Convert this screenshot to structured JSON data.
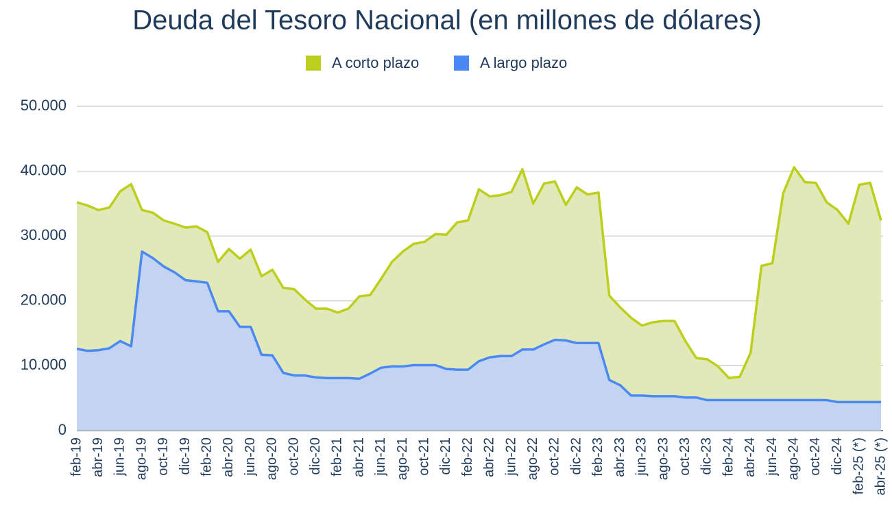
{
  "chart_data": {
    "type": "stacked_area",
    "title": "Deuda del Tesoro Nacional (en millones de dólares)",
    "categories": [
      "feb-19",
      null,
      "abr-19",
      null,
      "jun-19",
      null,
      "ago-19",
      null,
      "oct-19",
      null,
      "dic-19",
      null,
      "feb-20",
      null,
      "abr-20",
      null,
      "jun-20",
      null,
      "ago-20",
      null,
      "oct-20",
      null,
      "dic-20",
      null,
      "feb-21",
      null,
      "abr-21",
      null,
      "jun-21",
      null,
      "ago-21",
      null,
      "oct-21",
      null,
      "dic-21",
      null,
      "feb-22",
      null,
      "abr-22",
      null,
      "jun-22",
      null,
      "ago-22",
      null,
      "oct-22",
      null,
      "dic-22",
      null,
      "feb-23",
      null,
      "abr-23",
      null,
      "jun-23",
      null,
      "ago-23",
      null,
      "oct-23",
      null,
      "dic-23",
      null,
      "feb-24",
      null,
      "abr-24",
      null,
      "jun-24",
      null,
      "ago-24",
      null,
      "oct-24",
      null,
      "dic-24",
      null,
      "feb-25 (*)",
      null,
      "abr-25 (*)"
    ],
    "series": [
      {
        "name": "A corto plazo",
        "color": "#bccf1c",
        "fill": "#e2e9b8",
        "values": [
          22600,
          22400,
          21600,
          21700,
          23100,
          25000,
          6400,
          7000,
          7100,
          7500,
          8100,
          8500,
          7800,
          7600,
          9600,
          10500,
          11900,
          12100,
          13200,
          13100,
          13300,
          11700,
          10600,
          10700,
          10100,
          10700,
          12700,
          12100,
          13700,
          16100,
          17700,
          18700,
          19000,
          20200,
          20700,
          22700,
          23000,
          26500,
          24800,
          24800,
          25300,
          27800,
          22500,
          24800,
          24400,
          20900,
          24000,
          22900,
          23200,
          13000,
          12000,
          12000,
          10800,
          11400,
          11600,
          11600,
          8700,
          6100,
          6300,
          5200,
          3400,
          3600,
          7300,
          20700,
          21100,
          31900,
          35900,
          33600,
          33500,
          30500,
          29600,
          27500,
          33500,
          33800,
          28000
        ]
      },
      {
        "name": "A largo plazo",
        "color": "#4a89f3",
        "fill": "#c2d4f2",
        "values": [
          12600,
          12300,
          12400,
          12700,
          13800,
          13000,
          27600,
          26600,
          25300,
          24400,
          23200,
          23000,
          22800,
          18400,
          18400,
          16000,
          16000,
          11700,
          11600,
          8900,
          8500,
          8500,
          8200,
          8100,
          8100,
          8100,
          8000,
          8800,
          9700,
          9900,
          9900,
          10100,
          10100,
          10100,
          9500,
          9400,
          9400,
          10700,
          11300,
          11500,
          11500,
          12500,
          12500,
          13300,
          14000,
          13900,
          13500,
          13500,
          13500,
          7800,
          7000,
          5400,
          5400,
          5300,
          5300,
          5300,
          5100,
          5100,
          4700,
          4700,
          4700,
          4700,
          4700,
          4700,
          4700,
          4700,
          4700,
          4700,
          4700,
          4700,
          4400,
          4400,
          4400,
          4400,
          4400
        ]
      }
    ],
    "ylim": [
      0,
      50000
    ],
    "yticks": [
      0,
      {
        "value": 10000,
        "label": "10.000"
      },
      {
        "value": 20000,
        "label": "20.000"
      },
      {
        "value": 30000,
        "label": "30.000"
      },
      {
        "value": 40000,
        "label": "40.000"
      },
      {
        "value": 50000,
        "label": "50.000"
      }
    ],
    "grid": true,
    "legend": "top"
  }
}
